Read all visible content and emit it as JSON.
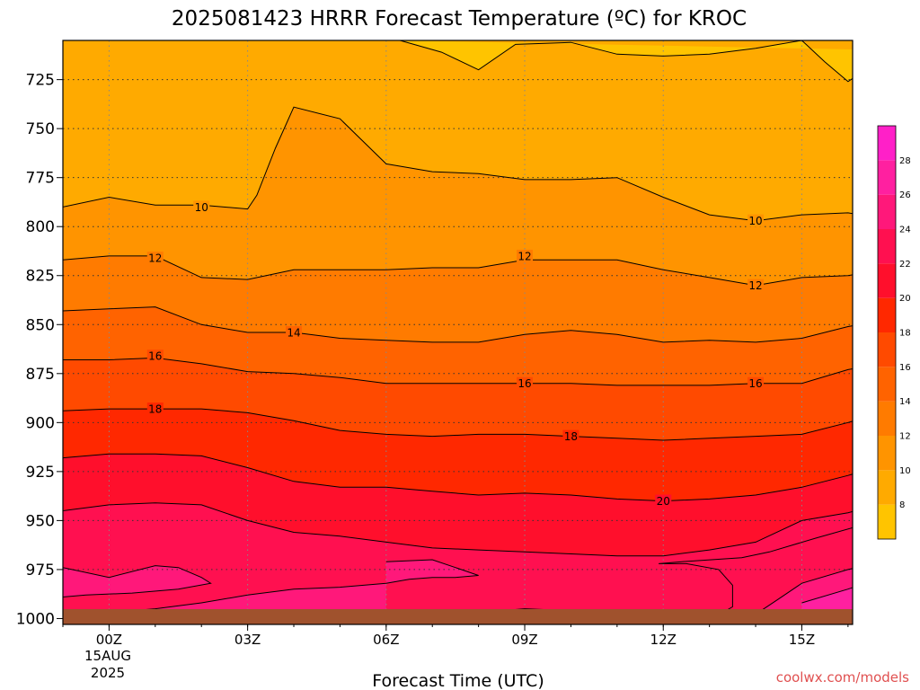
{
  "chart_data": {
    "type": "heatmap",
    "title": "2025081423 HRRR Forecast Temperature (ºC) for KROC",
    "xlabel": "Forecast Time (UTC)",
    "ylabel": "",
    "credit": "coolwx.com/models",
    "y_axis": {
      "scale": "pressure (hPa), inverted",
      "range": [
        1003,
        705
      ],
      "ticks": [
        725,
        750,
        775,
        800,
        825,
        850,
        875,
        900,
        925,
        950,
        975,
        1000
      ]
    },
    "x_axis": {
      "range_hours": [
        -1,
        16.1
      ],
      "tick_hours": [
        0,
        3,
        6,
        9,
        12,
        15
      ],
      "tick_labels": [
        "00Z",
        "03Z",
        "06Z",
        "09Z",
        "12Z",
        "15Z"
      ],
      "date_line1": "15AUG",
      "date_line2": "2025"
    },
    "grid": true,
    "colorbar": {
      "position": "right",
      "ticks": [
        8,
        10,
        12,
        14,
        16,
        18,
        20,
        22,
        24,
        26,
        28
      ],
      "bands": [
        {
          "from": 6,
          "to": 8,
          "color": "#ffc400"
        },
        {
          "from": 8,
          "to": 10,
          "color": "#ffaa00"
        },
        {
          "from": 10,
          "to": 12,
          "color": "#ff9400"
        },
        {
          "from": 12,
          "to": 14,
          "color": "#ff7b00"
        },
        {
          "from": 14,
          "to": 16,
          "color": "#ff6300"
        },
        {
          "from": 16,
          "to": 18,
          "color": "#ff4a00"
        },
        {
          "from": 18,
          "to": 20,
          "color": "#ff2800"
        },
        {
          "from": 20,
          "to": 22,
          "color": "#ff0f2c"
        },
        {
          "from": 22,
          "to": 24,
          "color": "#ff1050"
        },
        {
          "from": 24,
          "to": 26,
          "color": "#ff187a"
        },
        {
          "from": 26,
          "to": 28,
          "color": "#ff20a0"
        },
        {
          "from": 28,
          "to": 30,
          "color": "#ff20c8"
        }
      ]
    },
    "ground_color": "#a0522d",
    "contours": [
      {
        "level": 8,
        "label": "",
        "points": [
          [
            6.3,
            705
          ],
          [
            7.2,
            711
          ],
          [
            8,
            720
          ],
          [
            8.8,
            707
          ],
          [
            10,
            706
          ],
          [
            11,
            712
          ],
          [
            12,
            713
          ],
          [
            13,
            712
          ],
          [
            14,
            709
          ],
          [
            15,
            705
          ],
          [
            15.5,
            716
          ],
          [
            16,
            726
          ],
          [
            16.5,
            718
          ],
          [
            16.9,
            710
          ],
          [
            17,
            710
          ]
        ]
      },
      {
        "level": 10,
        "label": "10",
        "label_at": [
          2,
          790
        ],
        "label2_at": [
          14,
          797
        ],
        "points": [
          [
            -1,
            790
          ],
          [
            0,
            785
          ],
          [
            1,
            789
          ],
          [
            2,
            789
          ],
          [
            3,
            791
          ],
          [
            3.2,
            784
          ],
          [
            3.6,
            760
          ],
          [
            4,
            739
          ],
          [
            5,
            745
          ],
          [
            6,
            768
          ],
          [
            7,
            772
          ],
          [
            8,
            773
          ],
          [
            9,
            776
          ],
          [
            10,
            776
          ],
          [
            11,
            775
          ],
          [
            12,
            785
          ],
          [
            13,
            794
          ],
          [
            14,
            797
          ],
          [
            15,
            794
          ],
          [
            16,
            793
          ],
          [
            17,
            797
          ]
        ]
      },
      {
        "level": 12,
        "label": "12",
        "label_at": [
          1,
          816
        ],
        "label2_at": [
          9,
          815
        ],
        "label3_at": [
          14,
          830
        ],
        "points": [
          [
            -1,
            817
          ],
          [
            0,
            815
          ],
          [
            1,
            815
          ],
          [
            2,
            826
          ],
          [
            3,
            827
          ],
          [
            4,
            822
          ],
          [
            5,
            822
          ],
          [
            6,
            822
          ],
          [
            7,
            821
          ],
          [
            8,
            821
          ],
          [
            9,
            817
          ],
          [
            10,
            817
          ],
          [
            11,
            817
          ],
          [
            12,
            822
          ],
          [
            13,
            826
          ],
          [
            14,
            830
          ],
          [
            15,
            826
          ],
          [
            16,
            825
          ],
          [
            17,
            821
          ]
        ]
      },
      {
        "level": 14,
        "label": "14",
        "label_at": [
          4,
          854
        ],
        "points": [
          [
            -1,
            843
          ],
          [
            0,
            842
          ],
          [
            1,
            841
          ],
          [
            2,
            850
          ],
          [
            3,
            854
          ],
          [
            4,
            854
          ],
          [
            5,
            857
          ],
          [
            6,
            858
          ],
          [
            7,
            859
          ],
          [
            8,
            859
          ],
          [
            9,
            855
          ],
          [
            10,
            853
          ],
          [
            11,
            855
          ],
          [
            12,
            859
          ],
          [
            13,
            858
          ],
          [
            14,
            859
          ],
          [
            15,
            857
          ],
          [
            16,
            851
          ],
          [
            17,
            847
          ]
        ]
      },
      {
        "level": 16,
        "label": "16",
        "label_at": [
          1,
          866
        ],
        "label2_at": [
          9,
          880
        ],
        "label3_at": [
          14,
          880
        ],
        "points": [
          [
            -1,
            868
          ],
          [
            0,
            868
          ],
          [
            1,
            867
          ],
          [
            2,
            870
          ],
          [
            3,
            874
          ],
          [
            4,
            875
          ],
          [
            5,
            877
          ],
          [
            6,
            880
          ],
          [
            7,
            880
          ],
          [
            8,
            880
          ],
          [
            9,
            880
          ],
          [
            10,
            880
          ],
          [
            11,
            881
          ],
          [
            12,
            881
          ],
          [
            13,
            881
          ],
          [
            14,
            880
          ],
          [
            15,
            880
          ],
          [
            16,
            873
          ],
          [
            17,
            869
          ]
        ]
      },
      {
        "level": 18,
        "label": "18",
        "label_at": [
          1,
          893
        ],
        "label2_at": [
          10,
          907
        ],
        "points": [
          [
            -1,
            894
          ],
          [
            0,
            893
          ],
          [
            1,
            893
          ],
          [
            2,
            893
          ],
          [
            3,
            895
          ],
          [
            4,
            899
          ],
          [
            5,
            904
          ],
          [
            6,
            906
          ],
          [
            7,
            907
          ],
          [
            8,
            906
          ],
          [
            9,
            906
          ],
          [
            10,
            907
          ],
          [
            11,
            908
          ],
          [
            12,
            909
          ],
          [
            13,
            908
          ],
          [
            14,
            907
          ],
          [
            15,
            906
          ],
          [
            16,
            900
          ],
          [
            17,
            893
          ]
        ]
      },
      {
        "level": 20,
        "label": "20",
        "label_at": [
          12,
          940
        ],
        "points": [
          [
            -1,
            918
          ],
          [
            0,
            916
          ],
          [
            1,
            916
          ],
          [
            2,
            917
          ],
          [
            3,
            923
          ],
          [
            4,
            930
          ],
          [
            5,
            933
          ],
          [
            6,
            933
          ],
          [
            7,
            935
          ],
          [
            8,
            937
          ],
          [
            9,
            936
          ],
          [
            10,
            937
          ],
          [
            11,
            939
          ],
          [
            12,
            940
          ],
          [
            13,
            939
          ],
          [
            14,
            937
          ],
          [
            15,
            933
          ],
          [
            16,
            927
          ],
          [
            17,
            920
          ]
        ]
      },
      {
        "level": 22,
        "label": "",
        "points": [
          [
            -1,
            945
          ],
          [
            0,
            942
          ],
          [
            1,
            941
          ],
          [
            2,
            942
          ],
          [
            3,
            950
          ],
          [
            4,
            956
          ],
          [
            5,
            958
          ],
          [
            6,
            961
          ],
          [
            7,
            964
          ],
          [
            8,
            965
          ],
          [
            9,
            966
          ],
          [
            10,
            967
          ],
          [
            11,
            968
          ],
          [
            12,
            968
          ],
          [
            13,
            965
          ],
          [
            14,
            961
          ],
          [
            15,
            950
          ],
          [
            16,
            946
          ],
          [
            17,
            940
          ]
        ]
      },
      {
        "level": 24,
        "label": "",
        "points": [
          [
            -1,
            974
          ],
          [
            0,
            979
          ],
          [
            1,
            973
          ],
          [
            1.5,
            974
          ],
          [
            2,
            979
          ],
          [
            2.2,
            982
          ],
          [
            1.5,
            985
          ],
          [
            0.5,
            987
          ],
          [
            -0.5,
            988
          ],
          [
            -1,
            989
          ]
        ]
      },
      {
        "level": 24,
        "label": "",
        "points": [
          [
            6,
            971
          ],
          [
            7,
            970
          ],
          [
            7.5,
            974
          ],
          [
            8,
            978
          ],
          [
            7.5,
            979
          ],
          [
            7,
            979
          ],
          [
            6.5,
            980
          ],
          [
            6,
            982
          ],
          [
            5,
            984
          ],
          [
            4,
            985
          ],
          [
            3,
            988
          ],
          [
            2,
            992
          ],
          [
            1,
            995
          ],
          [
            0,
            997
          ],
          [
            -1,
            999
          ]
        ]
      },
      {
        "level": 22,
        "label": "",
        "points": [
          [
            12,
            998
          ],
          [
            12.4,
            997
          ],
          [
            12.4,
            1000
          ],
          [
            13,
            1001
          ]
        ]
      },
      {
        "level": 22,
        "label": "",
        "points": [
          [
            13,
            1001
          ],
          [
            13.5,
            994
          ],
          [
            13.5,
            983
          ],
          [
            13.2,
            975
          ],
          [
            12.5,
            972
          ],
          [
            11.9,
            972
          ],
          [
            12.4,
            971
          ],
          [
            13.7,
            969
          ],
          [
            14.3,
            966
          ],
          [
            15.3,
            959
          ],
          [
            16.2,
            953
          ],
          [
            17,
            950
          ]
        ]
      },
      {
        "level": 24,
        "label": "",
        "points": [
          [
            13.8,
            1001
          ],
          [
            14.5,
            990
          ],
          [
            15,
            982
          ],
          [
            16,
            975
          ],
          [
            17,
            970
          ]
        ]
      },
      {
        "level": 26,
        "label": "",
        "points": [
          [
            15,
            992
          ],
          [
            16,
            985
          ],
          [
            17,
            977
          ]
        ]
      },
      {
        "level": 22,
        "label": "",
        "points": [
          [
            6,
            999
          ],
          [
            7,
            998
          ],
          [
            8,
            997
          ],
          [
            9,
            995
          ],
          [
            10,
            996
          ],
          [
            11,
            997
          ],
          [
            12,
            998
          ]
        ]
      }
    ]
  }
}
